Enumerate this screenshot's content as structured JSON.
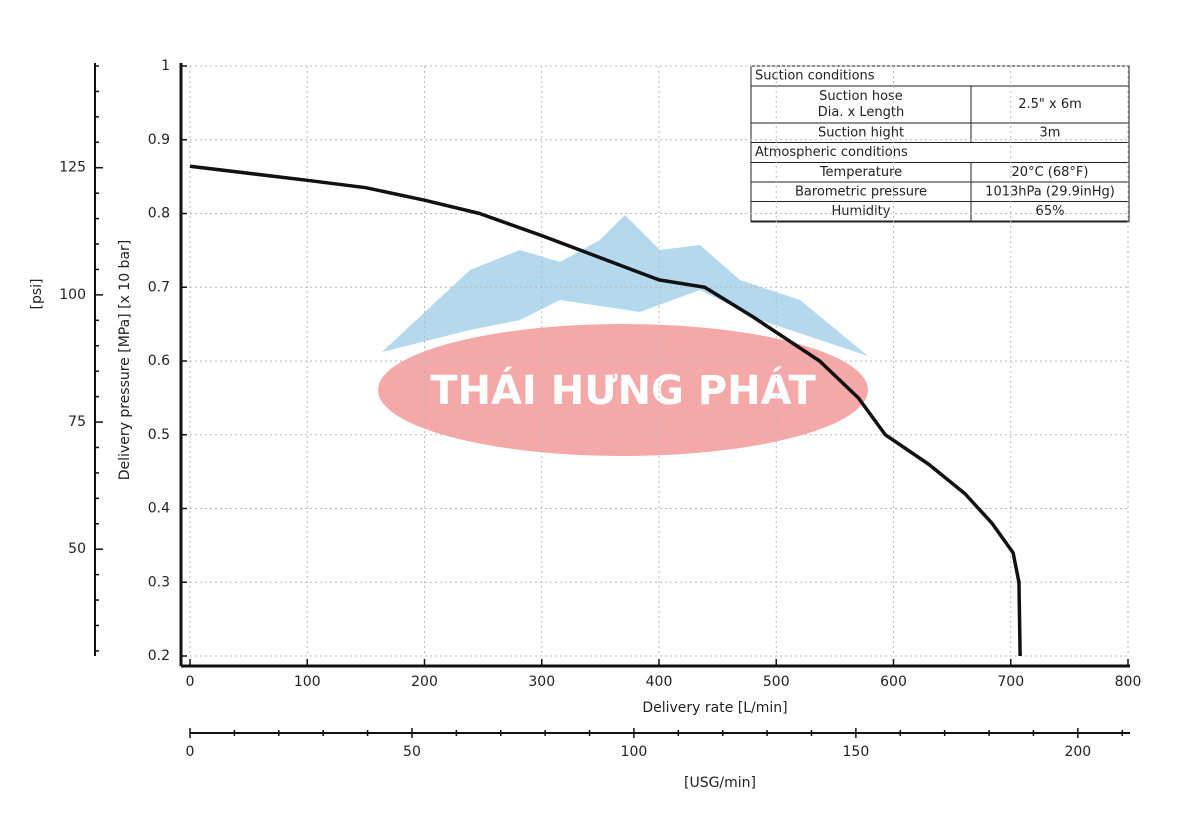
{
  "chart_data": {
    "type": "line",
    "xlabel": "Delivery rate [L/min]",
    "ylabel": "Delivery pressure [MPa] [x 10 bar]",
    "x": [
      0,
      100,
      150,
      200,
      247,
      300,
      350,
      400,
      439,
      480,
      537,
      570,
      593,
      630,
      661,
      684,
      702,
      707,
      708
    ],
    "series": [
      {
        "color": "#111111",
        "values": [
          0.864,
          0.845,
          0.835,
          0.818,
          0.8,
          0.77,
          0.74,
          0.71,
          0.7,
          0.66,
          0.6,
          0.55,
          0.5,
          0.46,
          0.42,
          0.38,
          0.34,
          0.3,
          0.2
        ]
      }
    ],
    "xlim": [
      0,
      800
    ],
    "xticks": [
      0,
      100,
      200,
      300,
      400,
      500,
      600,
      700,
      800
    ],
    "ylim": [
      0.2,
      1
    ],
    "yticks": [
      0.2,
      0.3,
      0.4,
      0.5,
      0.6,
      0.7,
      0.8,
      0.9,
      1
    ],
    "grid": true,
    "psi_axis": {
      "label": "[psi]",
      "lim": [
        29,
        145
      ],
      "ticks": [
        50,
        75,
        100,
        125
      ],
      "minor_ticks": [
        30,
        35,
        40,
        45,
        55,
        60,
        65,
        70,
        80,
        85,
        90,
        95,
        105,
        110,
        115,
        120,
        130,
        135,
        140,
        145
      ]
    },
    "usg_axis": {
      "label": "[USG/min]",
      "lim": [
        0,
        211.3
      ],
      "ticks": [
        0,
        50,
        100,
        150,
        200
      ],
      "minor_ticks": [
        10,
        20,
        30,
        40,
        60,
        70,
        80,
        90,
        110,
        120,
        130,
        140,
        160,
        170,
        180,
        190,
        210
      ]
    }
  },
  "conditions_table": {
    "sections": [
      {
        "title": "Suction conditions",
        "rows": [
          {
            "label": [
              "Suction hose",
              "Dia. x Length"
            ],
            "value": "2.5\" x 6m"
          },
          {
            "label": [
              "Suction hight"
            ],
            "value": "3m"
          }
        ]
      },
      {
        "title": "Atmospheric conditions",
        "rows": [
          {
            "label": [
              "Temperature"
            ],
            "value": "20°C (68°F)"
          },
          {
            "label": [
              "Barometric pressure"
            ],
            "value": "1013hPa (29.9inHg)"
          },
          {
            "label": [
              "Humidity"
            ],
            "value": "65%"
          }
        ]
      }
    ]
  },
  "watermark": "THÁI HƯNG PHÁT"
}
